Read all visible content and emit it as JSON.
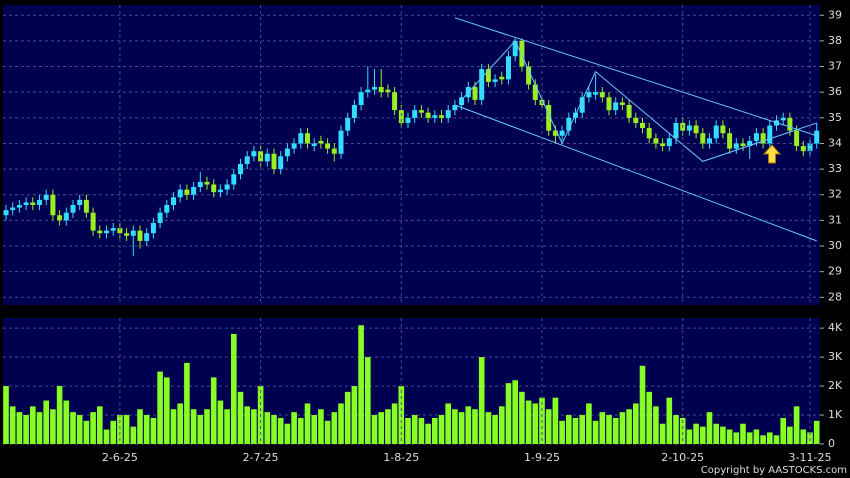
{
  "chart_data": [
    {
      "type": "candlestick",
      "up_color": "#33ddff",
      "down_color": "#99ee22",
      "ylim": [
        27.7,
        39.4
      ],
      "yticks": [
        28,
        29,
        30,
        31,
        32,
        33,
        34,
        35,
        36,
        37,
        38,
        39
      ],
      "grid": true,
      "open": [
        31.2,
        31.4,
        31.5,
        31.6,
        31.7,
        31.6,
        31.8,
        32.0,
        31.2,
        31.0,
        31.3,
        31.6,
        31.8,
        31.3,
        30.6,
        30.5,
        30.6,
        30.7,
        30.5,
        30.4,
        30.6,
        30.2,
        30.5,
        30.9,
        31.3,
        31.6,
        31.9,
        32.2,
        32.0,
        32.3,
        32.5,
        32.4,
        32.1,
        32.2,
        32.4,
        32.8,
        33.2,
        33.5,
        33.7,
        33.3,
        33.6,
        33.0,
        33.5,
        33.8,
        34.0,
        34.4,
        33.9,
        34.1,
        34.0,
        33.8,
        33.6,
        34.5,
        35.0,
        35.5,
        36.0,
        36.1,
        36.2,
        36.1,
        36.0,
        35.3,
        34.8,
        35.0,
        35.3,
        35.2,
        35.0,
        35.1,
        35.0,
        35.3,
        35.5,
        35.8,
        36.2,
        35.7,
        36.9,
        36.4,
        36.6,
        36.5,
        37.4,
        38.0,
        37.0,
        36.3,
        35.7,
        35.5,
        34.5,
        34.3,
        34.5,
        35.0,
        35.2,
        35.8,
        35.9,
        36.0,
        35.8,
        35.3,
        35.6,
        35.5,
        35.0,
        34.8,
        34.6,
        34.2,
        34.0,
        33.9,
        34.2,
        34.8,
        34.5,
        34.7,
        34.4,
        34.0,
        34.2,
        34.7,
        34.4,
        33.8,
        34.0,
        33.9,
        34.1,
        34.4,
        34.0,
        34.7,
        34.9,
        35.0,
        34.5,
        33.9,
        33.7,
        34.0
      ],
      "high": [
        31.6,
        31.7,
        31.8,
        31.9,
        31.9,
        32.0,
        32.2,
        32.2,
        31.4,
        31.5,
        31.8,
        32.0,
        32.0,
        31.5,
        30.8,
        30.8,
        30.9,
        30.9,
        30.7,
        30.8,
        30.8,
        30.7,
        31.1,
        31.5,
        31.8,
        32.1,
        32.4,
        32.4,
        32.5,
        32.9,
        32.7,
        32.6,
        32.4,
        32.6,
        33.0,
        33.4,
        33.7,
        33.9,
        33.9,
        33.8,
        33.8,
        33.7,
        34.0,
        34.2,
        34.6,
        34.6,
        34.2,
        34.3,
        34.2,
        34.0,
        34.7,
        35.2,
        35.7,
        36.2,
        37.0,
        36.9,
        36.9,
        36.3,
        36.2,
        35.5,
        35.2,
        35.5,
        35.5,
        35.4,
        35.3,
        35.3,
        35.5,
        35.7,
        36.0,
        36.4,
        36.4,
        37.1,
        37.1,
        36.7,
        36.8,
        37.6,
        38.1,
        38.1,
        37.2,
        36.5,
        35.9,
        35.7,
        34.7,
        34.7,
        35.2,
        35.4,
        36.0,
        36.2,
        36.7,
        36.2,
        36.0,
        35.8,
        35.8,
        35.7,
        35.2,
        35.0,
        34.8,
        34.4,
        34.2,
        34.4,
        35.0,
        35.0,
        34.9,
        34.9,
        34.6,
        34.4,
        34.9,
        34.9,
        34.6,
        34.2,
        34.2,
        34.3,
        34.6,
        34.6,
        34.9,
        35.1,
        35.2,
        35.2,
        34.7,
        34.1,
        34.2,
        34.8
      ],
      "low": [
        31.0,
        31.2,
        31.3,
        31.4,
        31.4,
        31.4,
        31.6,
        31.0,
        30.8,
        30.8,
        31.1,
        31.4,
        31.1,
        30.4,
        30.3,
        30.3,
        30.4,
        30.3,
        30.2,
        29.6,
        29.9,
        30.0,
        30.3,
        30.7,
        31.1,
        31.4,
        31.7,
        31.8,
        31.8,
        32.1,
        32.2,
        31.9,
        31.9,
        32.0,
        32.2,
        32.6,
        33.0,
        33.3,
        33.1,
        33.1,
        32.8,
        32.8,
        33.3,
        33.6,
        33.8,
        33.8,
        33.7,
        33.8,
        33.6,
        33.3,
        33.4,
        34.3,
        34.8,
        35.3,
        35.8,
        35.9,
        35.8,
        35.8,
        35.1,
        34.6,
        34.6,
        34.8,
        35.0,
        34.8,
        34.8,
        34.8,
        34.8,
        35.1,
        35.3,
        35.6,
        35.5,
        35.5,
        36.2,
        36.2,
        36.3,
        36.3,
        37.2,
        36.8,
        36.1,
        35.5,
        35.3,
        34.3,
        34.0,
        34.1,
        34.3,
        34.8,
        35.0,
        35.6,
        35.7,
        35.6,
        35.1,
        35.1,
        35.3,
        34.8,
        34.6,
        34.4,
        34.0,
        33.8,
        33.7,
        33.7,
        34.0,
        34.3,
        34.3,
        34.2,
        33.8,
        33.8,
        34.0,
        34.2,
        33.6,
        33.6,
        33.7,
        33.4,
        33.9,
        33.8,
        33.8,
        34.5,
        34.7,
        34.3,
        33.7,
        33.5,
        33.5,
        33.8
      ],
      "close": [
        31.4,
        31.5,
        31.6,
        31.7,
        31.6,
        31.8,
        32.0,
        31.2,
        31.0,
        31.3,
        31.6,
        31.8,
        31.3,
        30.6,
        30.5,
        30.6,
        30.7,
        30.5,
        30.4,
        30.6,
        30.2,
        30.5,
        30.9,
        31.3,
        31.6,
        31.9,
        32.2,
        32.0,
        32.3,
        32.5,
        32.4,
        32.1,
        32.2,
        32.4,
        32.8,
        33.2,
        33.5,
        33.7,
        33.3,
        33.6,
        33.0,
        33.5,
        33.8,
        34.0,
        34.4,
        34.0,
        34.0,
        34.0,
        33.8,
        33.6,
        34.5,
        35.0,
        35.5,
        36.0,
        36.1,
        36.2,
        36.0,
        36.0,
        35.3,
        34.8,
        35.0,
        35.3,
        35.2,
        35.0,
        35.1,
        35.0,
        35.3,
        35.5,
        35.8,
        36.2,
        35.7,
        36.9,
        36.4,
        36.5,
        36.5,
        37.4,
        38.0,
        37.0,
        36.3,
        35.7,
        35.5,
        34.5,
        34.3,
        34.5,
        35.0,
        35.2,
        35.8,
        36.0,
        36.0,
        35.8,
        35.3,
        35.6,
        35.5,
        35.0,
        34.8,
        34.6,
        34.2,
        34.0,
        33.9,
        34.2,
        34.8,
        34.5,
        34.7,
        34.4,
        34.0,
        34.2,
        34.7,
        34.4,
        33.8,
        34.0,
        33.9,
        34.1,
        34.4,
        34.0,
        34.7,
        34.9,
        35.0,
        34.5,
        33.9,
        33.7,
        34.0,
        34.5
      ],
      "trend_lines": [
        {
          "color": "#66ccff",
          "x": [
            67,
            121
          ],
          "y": [
            38.9,
            34.3
          ]
        },
        {
          "color": "#66ccff",
          "x": [
            67,
            121
          ],
          "y": [
            35.5,
            30.2
          ]
        },
        {
          "color": "#66ccff",
          "x": [
            68,
            76,
            83,
            88,
            104,
            121
          ],
          "y": [
            35.7,
            38.0,
            34.0,
            36.8,
            33.3,
            34.8
          ]
        }
      ]
    },
    {
      "type": "bar",
      "color": "#88ff22",
      "categories": [
        null,
        null,
        null,
        null,
        null,
        null,
        null,
        null,
        null,
        null,
        null,
        null,
        null,
        null,
        null,
        null,
        null,
        "2-6-25",
        null,
        null,
        null,
        null,
        null,
        null,
        null,
        null,
        null,
        null,
        null,
        null,
        null,
        null,
        null,
        null,
        null,
        null,
        null,
        null,
        "2-7-25",
        null,
        null,
        null,
        null,
        null,
        null,
        null,
        null,
        null,
        null,
        null,
        null,
        null,
        null,
        null,
        null,
        null,
        null,
        null,
        null,
        "1-8-25",
        null,
        null,
        null,
        null,
        null,
        null,
        null,
        null,
        null,
        null,
        null,
        null,
        null,
        null,
        null,
        null,
        null,
        null,
        null,
        null,
        "1-9-25",
        null,
        null,
        null,
        null,
        null,
        null,
        null,
        null,
        null,
        null,
        null,
        null,
        null,
        null,
        null,
        null,
        null,
        null,
        null,
        null,
        "2-10-25",
        null,
        null,
        null,
        null,
        null,
        null,
        null,
        null,
        null,
        null,
        null,
        null,
        null,
        null,
        null,
        null,
        null,
        null,
        "3-11-25",
        null
      ],
      "values": [
        2000,
        1300,
        1100,
        1000,
        1300,
        1100,
        1500,
        1200,
        2000,
        1500,
        1100,
        1000,
        800,
        1100,
        1300,
        500,
        800,
        1000,
        1000,
        600,
        1200,
        1000,
        900,
        2500,
        2300,
        1200,
        1400,
        2800,
        1200,
        1000,
        1200,
        2300,
        1500,
        1200,
        3800,
        1800,
        1300,
        1200,
        2000,
        1100,
        1000,
        900,
        700,
        1100,
        900,
        1400,
        1000,
        1200,
        800,
        1100,
        1400,
        1800,
        2000,
        4100,
        3000,
        1000,
        1100,
        1200,
        1400,
        2000,
        900,
        1000,
        900,
        700,
        900,
        1000,
        1400,
        1200,
        1100,
        1300,
        1200,
        3000,
        1100,
        1000,
        1300,
        2100,
        2200,
        1800,
        1500,
        1400,
        1600,
        1200,
        1600,
        800,
        1000,
        900,
        1000,
        1400,
        800,
        1100,
        1000,
        900,
        1100,
        1200,
        1400,
        2700,
        1800,
        1300,
        700,
        1600,
        1000,
        900,
        500,
        700,
        600,
        1100,
        700,
        600,
        500,
        400,
        700,
        400,
        500,
        300,
        400,
        300,
        900,
        600,
        1300,
        500,
        400,
        800
      ],
      "ylim": [
        0,
        4350
      ],
      "yticks": [
        {
          "value": 0,
          "label": "0"
        },
        {
          "value": 1000,
          "label": "1K"
        },
        {
          "value": 2000,
          "label": "2K"
        },
        {
          "value": 3000,
          "label": "3K"
        },
        {
          "value": 4000,
          "label": "4K"
        }
      ],
      "grid": true
    }
  ],
  "copyright": "Copyright by AASTOCKS.com"
}
